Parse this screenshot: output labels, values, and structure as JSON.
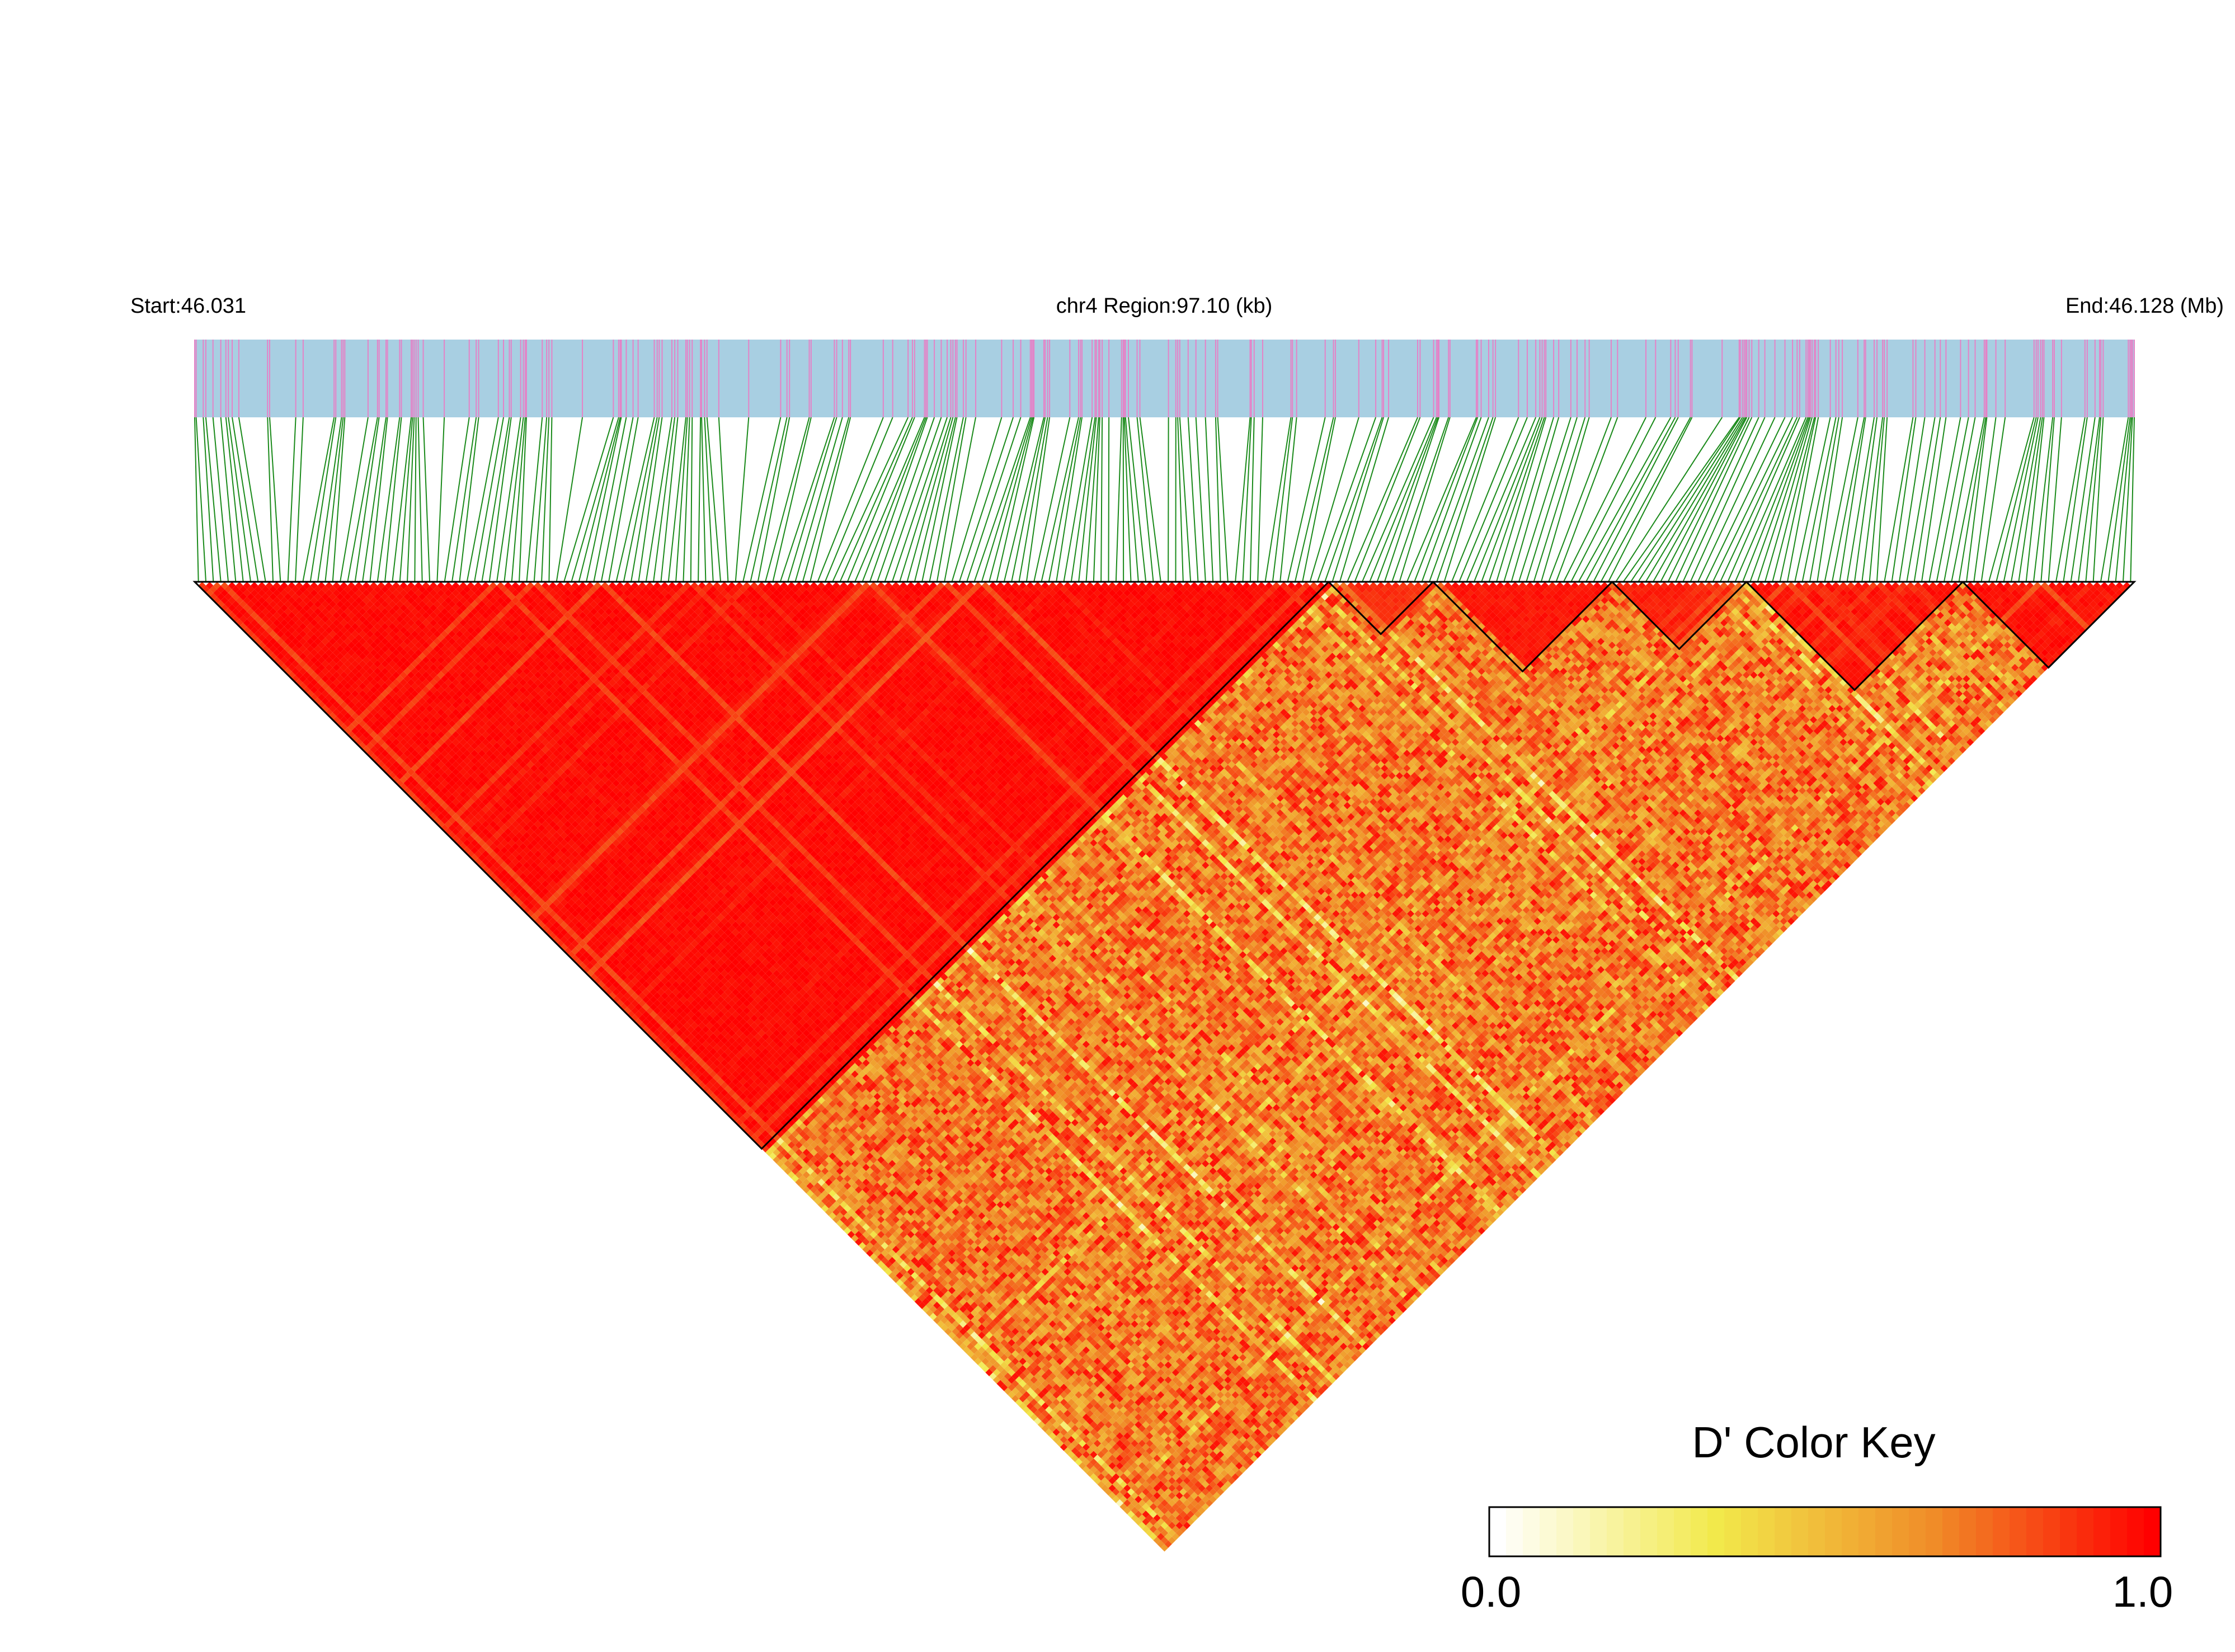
{
  "chart_data": {
    "type": "heatmap",
    "title": "",
    "region": {
      "chromosome": "chr4",
      "start_label": "Start:46.031",
      "center_label": "chr4 Region:97.10 (kb)",
      "end_label": "End:46.128 (Mb)",
      "start_mb": 46.031,
      "end_mb": 46.128,
      "length_kb": 97.1
    },
    "metric": "D'",
    "n_snps_approx": 260,
    "ld_structure": [
      {
        "snp_range_fraction": [
          0.0,
          0.585
        ],
        "d_prime": 0.98,
        "description": "strong-LD block"
      },
      {
        "snp_range_fraction": [
          0.585,
          0.64
        ],
        "d_prime": 0.9,
        "description": "small blocks"
      },
      {
        "snp_range_fraction": [
          0.64,
          0.73
        ],
        "d_prime": 0.95,
        "description": "strong-LD block"
      },
      {
        "snp_range_fraction": [
          0.73,
          0.8
        ],
        "d_prime": 0.93,
        "description": "strong-LD block"
      },
      {
        "snp_range_fraction": [
          0.8,
          0.91
        ],
        "d_prime": 0.96,
        "description": "strong-LD block"
      },
      {
        "snp_range_fraction": [
          0.91,
          1.0
        ],
        "d_prime": 0.97,
        "description": "strong-LD block"
      },
      {
        "between_blocks_d_prime_range": [
          0.3,
          0.9
        ]
      }
    ],
    "color_key": {
      "title": "D' Color Key",
      "min_label": "0.0",
      "max_label": "1.0",
      "min": 0.0,
      "max": 1.0,
      "colors": [
        "#ffffff",
        "#f2e94b",
        "#f08c28",
        "#ff0000"
      ]
    },
    "colors": {
      "chromosome_band": "#a8cfe2",
      "snp_tick": "#e483c7",
      "connector_line": "#1a8a1a",
      "block_outline": "#000000"
    }
  }
}
